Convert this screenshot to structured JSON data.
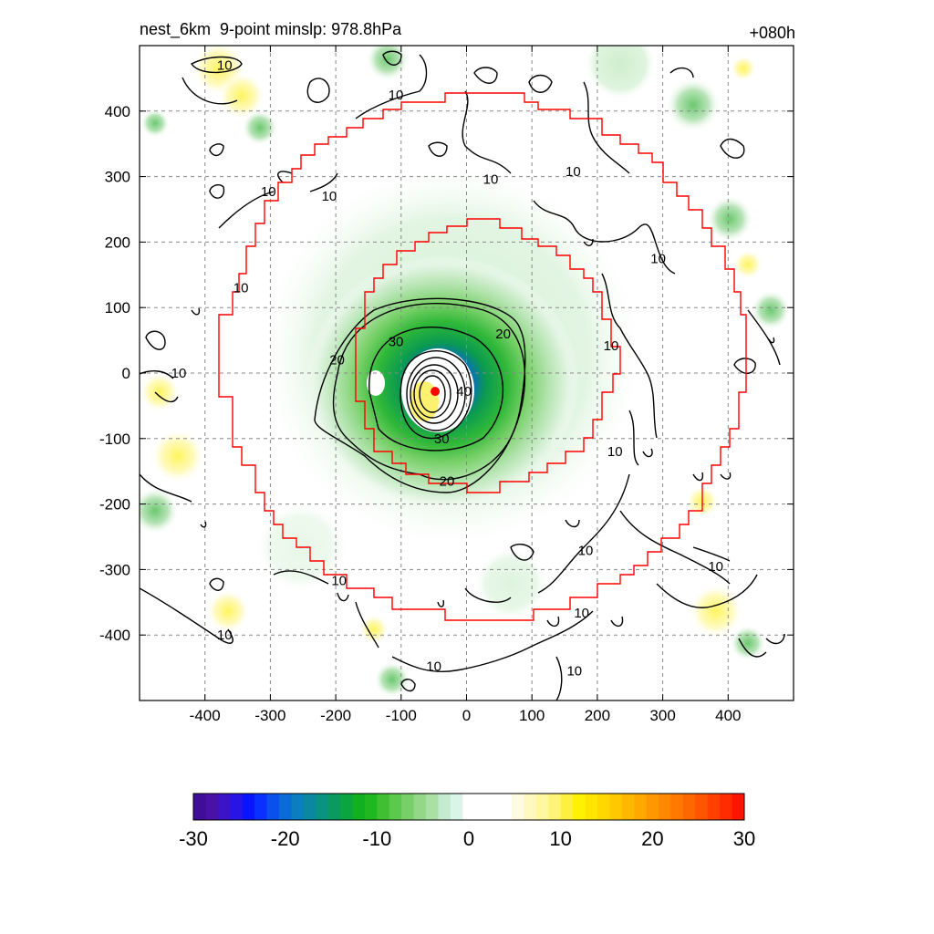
{
  "header": {
    "title": "nest_6km  9-point minslp: 978.8hPa",
    "forecast_hour": "+080h"
  },
  "chart_data": {
    "type": "heatmap",
    "title": "nest_6km  9-point minslp: 978.8hPa",
    "annotation": "+080h",
    "xlim": [
      -500,
      500
    ],
    "ylim": [
      -500,
      500
    ],
    "x_ticks": [
      "-400",
      "-300",
      "-200",
      "-100",
      "0",
      "100",
      "200",
      "300",
      "400"
    ],
    "y_ticks": [
      "400",
      "300",
      "200",
      "100",
      "0",
      "-100",
      "-200",
      "-300",
      "-400"
    ],
    "grid": true,
    "center_marker": {
      "x": -48,
      "y": -28,
      "color": "#ff0000"
    },
    "contour_lines": [
      {
        "level": 10,
        "label": "10",
        "label_positions": [
          [
            -370,
            470
          ],
          [
            -108,
            425
          ],
          [
            -303,
            277
          ],
          [
            -210,
            270
          ],
          [
            37,
            296
          ],
          [
            163,
            308
          ],
          [
            293,
            175
          ],
          [
            -345,
            130
          ],
          [
            221,
            42
          ],
          [
            227,
            -120
          ],
          [
            -195,
            -317
          ],
          [
            182,
            -271
          ],
          [
            -370,
            -400
          ],
          [
            381,
            -295
          ],
          [
            176,
            -366
          ],
          [
            -50,
            -448
          ],
          [
            165,
            -455
          ],
          [
            -440,
            0
          ]
        ]
      },
      {
        "level": 20,
        "label": "20",
        "label_positions": [
          [
            -198,
            20
          ],
          [
            56,
            60
          ],
          [
            -30,
            -165
          ]
        ]
      },
      {
        "level": 30,
        "label": "30",
        "label_positions": [
          [
            -108,
            48
          ],
          [
            -38,
            -100
          ]
        ]
      },
      {
        "level": 40,
        "label": "40",
        "label_positions": [
          [
            -4,
            -28
          ]
        ]
      }
    ],
    "red_boundaries": [
      "outer ring, radius ~380 km",
      "inner ring, radius ~230 km"
    ],
    "colorbar": {
      "min": -30,
      "max": 30,
      "tick_labels": [
        "-30",
        "-20",
        "-10",
        "0",
        "10",
        "20",
        "30"
      ],
      "colors": [
        "#3c0f96",
        "#4a10a8",
        "#3c14c8",
        "#2814e6",
        "#0a14ff",
        "#0a30ff",
        "#0a50ec",
        "#0a6ad8",
        "#0a7ec0",
        "#0a88a0",
        "#0a9280",
        "#0a9a60",
        "#0aa540",
        "#10b020",
        "#20b820",
        "#40c030",
        "#5cc84c",
        "#78d068",
        "#92d888",
        "#aae0a4",
        "#c4ead0",
        "#daf4e8",
        "#ffffff",
        "#ffffff",
        "#ffffff",
        "#ffffff",
        "#fffae0",
        "#fff8c0",
        "#fff8a0",
        "#fff478",
        "#fff040",
        "#fff200",
        "#ffe600",
        "#ffd800",
        "#ffc800",
        "#ffb800",
        "#ffa800",
        "#ff9800",
        "#ff8800",
        "#ff7800",
        "#ff6800",
        "#ff5400",
        "#ff4000",
        "#ff2c00",
        "#ff1400"
      ]
    }
  }
}
